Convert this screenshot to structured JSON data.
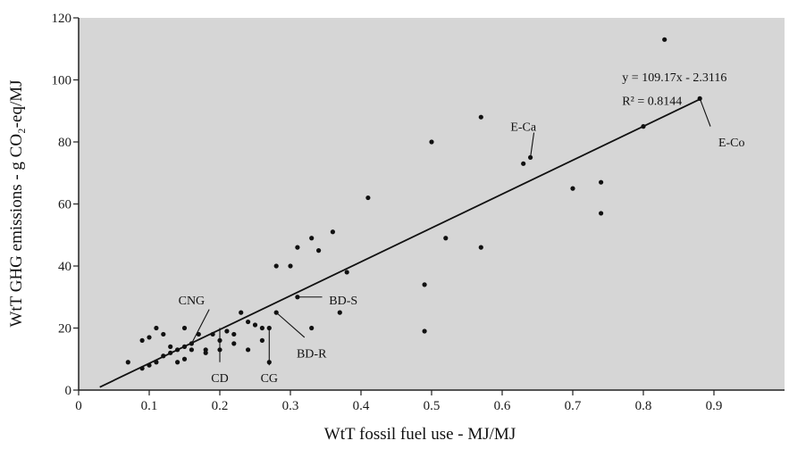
{
  "chart_data": {
    "type": "scatter",
    "xlabel": "WtT fossil fuel use - MJ/MJ",
    "ylabel": "WtT GHG emissions - g CO₂-eq/MJ",
    "xlim": [
      0,
      1.0
    ],
    "ylim": [
      0,
      120
    ],
    "x_ticks": [
      "0",
      "0.1",
      "0.2",
      "0.3",
      "0.4",
      "0.5",
      "0.6",
      "0.7",
      "0.8",
      "0.9"
    ],
    "x_tick_values": [
      0,
      0.1,
      0.2,
      0.3,
      0.4,
      0.5,
      0.6,
      0.7,
      0.8,
      0.9
    ],
    "y_ticks": [
      "0",
      "20",
      "40",
      "60",
      "80",
      "100",
      "120"
    ],
    "y_tick_values": [
      0,
      20,
      40,
      60,
      80,
      100,
      120
    ],
    "grid": false,
    "background": "#d6d6d6",
    "point_color": "#111111",
    "points": [
      {
        "x": 0.07,
        "y": 9
      },
      {
        "x": 0.09,
        "y": 16
      },
      {
        "x": 0.09,
        "y": 7
      },
      {
        "x": 0.1,
        "y": 17
      },
      {
        "x": 0.1,
        "y": 8
      },
      {
        "x": 0.11,
        "y": 20
      },
      {
        "x": 0.11,
        "y": 9
      },
      {
        "x": 0.12,
        "y": 18
      },
      {
        "x": 0.12,
        "y": 11
      },
      {
        "x": 0.13,
        "y": 14
      },
      {
        "x": 0.13,
        "y": 12
      },
      {
        "x": 0.14,
        "y": 9
      },
      {
        "x": 0.14,
        "y": 13
      },
      {
        "x": 0.15,
        "y": 10
      },
      {
        "x": 0.15,
        "y": 20
      },
      {
        "x": 0.15,
        "y": 14
      },
      {
        "x": 0.16,
        "y": 15
      },
      {
        "x": 0.16,
        "y": 13
      },
      {
        "x": 0.17,
        "y": 18
      },
      {
        "x": 0.18,
        "y": 12
      },
      {
        "x": 0.18,
        "y": 13
      },
      {
        "x": 0.19,
        "y": 18
      },
      {
        "x": 0.2,
        "y": 16
      },
      {
        "x": 0.2,
        "y": 13
      },
      {
        "x": 0.21,
        "y": 19
      },
      {
        "x": 0.22,
        "y": 18
      },
      {
        "x": 0.22,
        "y": 15
      },
      {
        "x": 0.23,
        "y": 25
      },
      {
        "x": 0.24,
        "y": 22
      },
      {
        "x": 0.24,
        "y": 13
      },
      {
        "x": 0.25,
        "y": 21
      },
      {
        "x": 0.26,
        "y": 20
      },
      {
        "x": 0.26,
        "y": 16
      },
      {
        "x": 0.27,
        "y": 20
      },
      {
        "x": 0.27,
        "y": 9
      },
      {
        "x": 0.28,
        "y": 40
      },
      {
        "x": 0.28,
        "y": 25
      },
      {
        "x": 0.3,
        "y": 40
      },
      {
        "x": 0.31,
        "y": 46
      },
      {
        "x": 0.31,
        "y": 30
      },
      {
        "x": 0.33,
        "y": 49
      },
      {
        "x": 0.33,
        "y": 20
      },
      {
        "x": 0.34,
        "y": 45
      },
      {
        "x": 0.36,
        "y": 51
      },
      {
        "x": 0.37,
        "y": 25
      },
      {
        "x": 0.38,
        "y": 38
      },
      {
        "x": 0.41,
        "y": 62
      },
      {
        "x": 0.49,
        "y": 34
      },
      {
        "x": 0.49,
        "y": 19
      },
      {
        "x": 0.5,
        "y": 80
      },
      {
        "x": 0.52,
        "y": 49
      },
      {
        "x": 0.57,
        "y": 88
      },
      {
        "x": 0.57,
        "y": 46
      },
      {
        "x": 0.63,
        "y": 73
      },
      {
        "x": 0.64,
        "y": 75
      },
      {
        "x": 0.7,
        "y": 65
      },
      {
        "x": 0.74,
        "y": 67
      },
      {
        "x": 0.74,
        "y": 57
      },
      {
        "x": 0.8,
        "y": 85
      },
      {
        "x": 0.83,
        "y": 113
      },
      {
        "x": 0.88,
        "y": 94
      }
    ],
    "trendline": {
      "slope": 109.17,
      "intercept": -2.3116,
      "x_range": [
        0.03,
        0.88
      ],
      "equation": "y = 109.17x - 2.3116",
      "r2_label": "R² = 0.8144"
    },
    "annotations": [
      {
        "label": "CNG",
        "x": 0.16,
        "y": 15,
        "dir": "up-right"
      },
      {
        "label": "CD",
        "x": 0.2,
        "y": 9,
        "dir": "down"
      },
      {
        "label": "CG",
        "x": 0.27,
        "y": 9,
        "dir": "down"
      },
      {
        "label": "BD-R",
        "x": 0.28,
        "y": 25,
        "dir": "down-right"
      },
      {
        "label": "BD-S",
        "x": 0.31,
        "y": 30,
        "dir": "right"
      },
      {
        "label": "E-Ca",
        "x": 0.64,
        "y": 75,
        "dir": "up-left"
      },
      {
        "label": "E-Co",
        "x": 0.88,
        "y": 94,
        "dir": "down-right"
      }
    ]
  }
}
